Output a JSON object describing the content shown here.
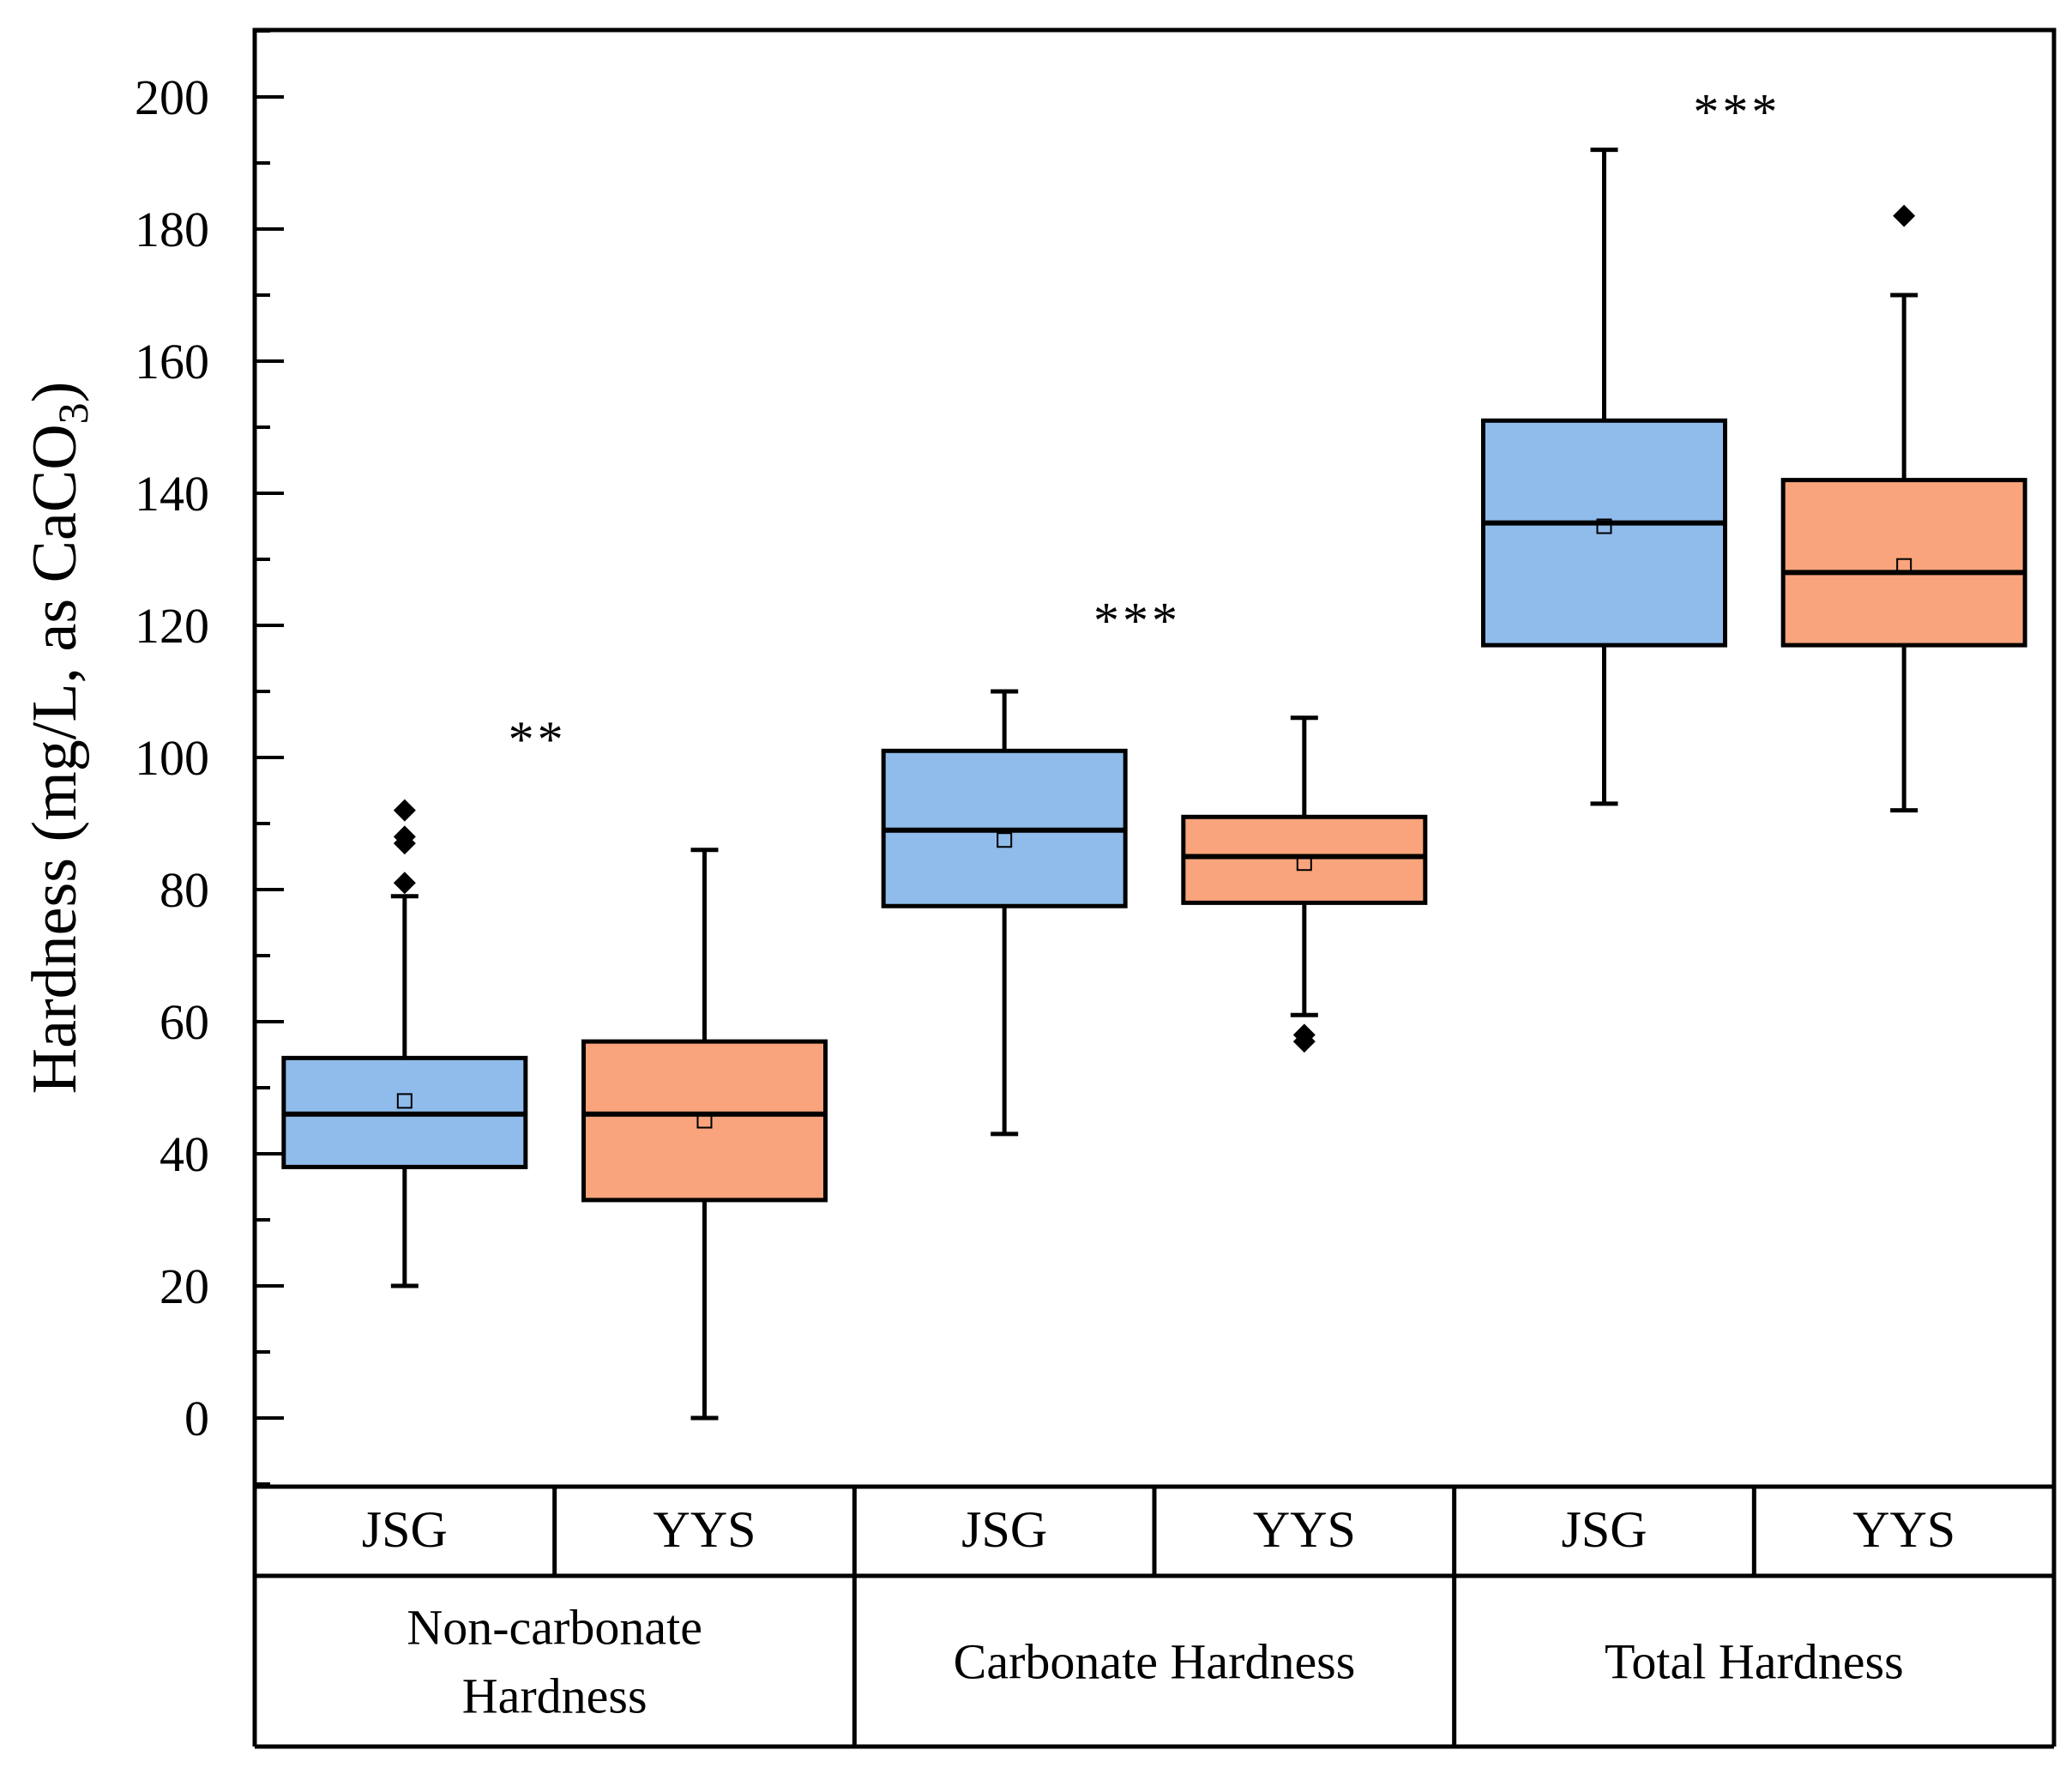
{
  "chart_data": {
    "type": "box",
    "ylabel_main": "Hardness (mg/L, as CaCO",
    "ylabel_sub": "3",
    "ylabel_close": ")",
    "ylim": [
      -10,
      210
    ],
    "yticks": [
      0,
      20,
      40,
      60,
      80,
      100,
      120,
      140,
      160,
      180,
      200
    ],
    "ytick_labels": [
      "0",
      "20",
      "40",
      "60",
      "80",
      "100",
      "120",
      "140",
      "160",
      "180",
      "200"
    ],
    "groups": [
      {
        "label_lines": [
          "Non-carbonate",
          "Hardness"
        ],
        "significance": "**",
        "significance_y": 104
      },
      {
        "label_lines": [
          "Carbonate Hardness"
        ],
        "significance": "***",
        "significance_y": 122
      },
      {
        "label_lines": [
          "Total Hardness"
        ],
        "significance": "***",
        "significance_y": 199
      }
    ],
    "boxes": [
      {
        "group": 0,
        "site": "JSG",
        "color": "#8FBCEB",
        "whisker_low": 20,
        "q1": 38,
        "median": 46,
        "q3": 54.5,
        "whisker_high": 79,
        "mean": 48,
        "outliers": [
          81,
          87,
          88,
          92
        ]
      },
      {
        "group": 0,
        "site": "YYS",
        "color": "#F9A47C",
        "whisker_low": 0,
        "q1": 33,
        "median": 46,
        "q3": 57,
        "whisker_high": 86,
        "mean": 45,
        "outliers": []
      },
      {
        "group": 1,
        "site": "JSG",
        "color": "#8FBCEB",
        "whisker_low": 43,
        "q1": 77.5,
        "median": 89,
        "q3": 101,
        "whisker_high": 110,
        "mean": 87.5,
        "outliers": []
      },
      {
        "group": 1,
        "site": "YYS",
        "color": "#F9A47C",
        "whisker_low": 61,
        "q1": 78,
        "median": 85,
        "q3": 91,
        "whisker_high": 106,
        "mean": 84,
        "outliers": [
          57,
          58
        ]
      },
      {
        "group": 2,
        "site": "JSG",
        "color": "#8FBCEB",
        "whisker_low": 93,
        "q1": 117,
        "median": 135.5,
        "q3": 151,
        "whisker_high": 192,
        "mean": 135,
        "outliers": []
      },
      {
        "group": 2,
        "site": "YYS",
        "color": "#F9A47C",
        "whisker_low": 92,
        "q1": 117,
        "median": 128,
        "q3": 142,
        "whisker_high": 170,
        "mean": 129,
        "outliers": [
          182
        ]
      }
    ]
  }
}
